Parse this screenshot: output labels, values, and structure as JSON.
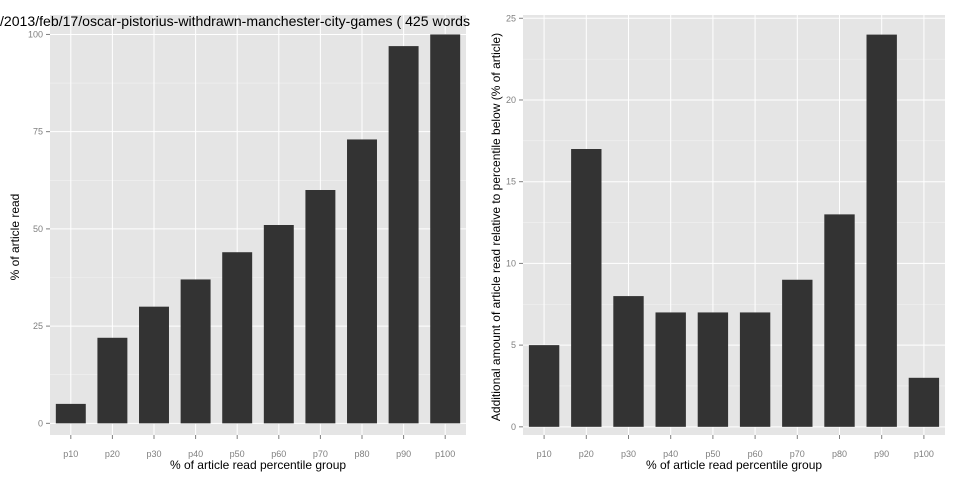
{
  "chart_data": [
    {
      "type": "bar",
      "title": "/2013/feb/17/oscar-pistorius-withdrawn-manchester-city-games ( 425 words",
      "xlabel": "% of article read percentile group",
      "ylabel": "% of article read",
      "categories": [
        "p10",
        "p20",
        "p30",
        "p40",
        "p50",
        "p60",
        "p70",
        "p80",
        "p90",
        "p100"
      ],
      "values": [
        5,
        22,
        30,
        37,
        44,
        51,
        60,
        73,
        97,
        100
      ],
      "ylim": [
        -3,
        105
      ],
      "yticks": [
        0,
        25,
        50,
        75,
        100
      ],
      "grid": true,
      "colors": {
        "bar": "#333333",
        "panel": "#e5e5e5",
        "grid": "#ffffff"
      }
    },
    {
      "type": "bar",
      "title": "",
      "xlabel": "% of article read percentile group",
      "ylabel": "Additional amount of article read relative to percentile below (% of article)",
      "categories": [
        "p10",
        "p20",
        "p30",
        "p40",
        "p50",
        "p60",
        "p70",
        "p80",
        "p90",
        "p100"
      ],
      "values": [
        5,
        17,
        8,
        7,
        7,
        7,
        9,
        13,
        24,
        3
      ],
      "ylim": [
        -0.5,
        25.2
      ],
      "yticks": [
        0,
        5,
        10,
        15,
        20,
        25
      ],
      "grid": true,
      "colors": {
        "bar": "#333333",
        "panel": "#e5e5e5",
        "grid": "#ffffff"
      }
    }
  ]
}
